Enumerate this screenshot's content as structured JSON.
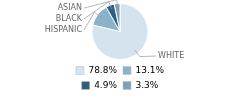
{
  "chart_data": {
    "type": "pie",
    "categories": [
      "WHITE",
      "HISPANIC",
      "BLACK",
      "ASIAN"
    ],
    "values": [
      78.8,
      13.1,
      4.9,
      3.3
    ],
    "value_labels": [
      "78.8%",
      "13.1%",
      "4.9%",
      "3.3%"
    ],
    "colors": [
      "#d4e3ee",
      "#8ab3c9",
      "#2e5f7e",
      "#7ba3b8"
    ],
    "legend": "bottom"
  }
}
